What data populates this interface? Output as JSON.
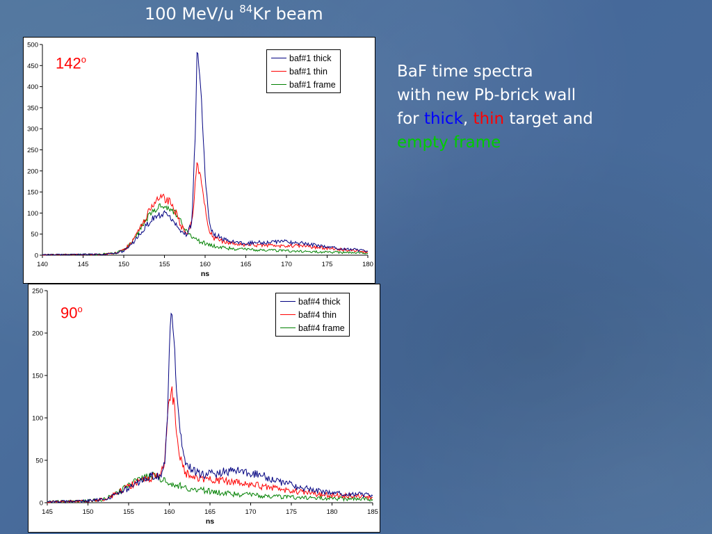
{
  "slide": {
    "title_prefix": "100 MeV/u ",
    "title_sup": "84",
    "title_suffix": "Kr beam",
    "text_line1": "BaF time spectra",
    "text_line2": "with new Pb-brick wall",
    "text_for": "for ",
    "text_thick": "thick",
    "text_comma": ", ",
    "text_thin": "thin",
    "text_target": " target and",
    "text_empty_frame": "empty frame"
  },
  "colors": {
    "thick": "#000080",
    "thin": "#ff0000",
    "frame": "#008000"
  },
  "chart_data": [
    {
      "type": "line",
      "angle_label": "142",
      "angle_sup": "o",
      "xlabel": "ns",
      "ylabel": "",
      "xlim": [
        140,
        180
      ],
      "ylim": [
        0,
        500
      ],
      "xticks": [
        140,
        145,
        150,
        155,
        160,
        165,
        170,
        175,
        180
      ],
      "yticks": [
        0,
        50,
        100,
        150,
        200,
        250,
        300,
        350,
        400,
        450,
        500
      ],
      "legend_position": "top-right",
      "series": [
        {
          "name": "baf#1 thick",
          "color": "#000080",
          "points": [
            [
              140,
              1
            ],
            [
              147,
              2
            ],
            [
              149,
              4
            ],
            [
              150,
              10
            ],
            [
              151,
              25
            ],
            [
              152,
              50
            ],
            [
              153,
              75
            ],
            [
              154,
              95
            ],
            [
              155,
              98
            ],
            [
              156,
              85
            ],
            [
              157,
              55
            ],
            [
              157.8,
              48
            ],
            [
              158.4,
              80
            ],
            [
              158.8,
              300
            ],
            [
              159.0,
              470
            ],
            [
              159.3,
              455
            ],
            [
              159.6,
              350
            ],
            [
              160,
              180
            ],
            [
              160.5,
              80
            ],
            [
              161,
              50
            ],
            [
              163,
              32
            ],
            [
              165,
              28
            ],
            [
              167,
              30
            ],
            [
              169,
              33
            ],
            [
              171,
              30
            ],
            [
              173,
              25
            ],
            [
              175,
              20
            ],
            [
              177,
              15
            ],
            [
              180,
              10
            ]
          ]
        },
        {
          "name": "baf#1 thin",
          "color": "#ff0000",
          "points": [
            [
              140,
              1
            ],
            [
              147,
              2
            ],
            [
              149,
              5
            ],
            [
              150,
              12
            ],
            [
              151,
              30
            ],
            [
              152,
              65
            ],
            [
              153,
              100
            ],
            [
              154,
              130
            ],
            [
              154.6,
              138
            ],
            [
              155,
              135
            ],
            [
              156,
              120
            ],
            [
              157,
              70
            ],
            [
              157.8,
              50
            ],
            [
              158.4,
              80
            ],
            [
              159,
              215
            ],
            [
              159.3,
              200
            ],
            [
              159.7,
              150
            ],
            [
              160,
              110
            ],
            [
              160.5,
              60
            ],
            [
              161,
              40
            ],
            [
              163,
              28
            ],
            [
              165,
              25
            ],
            [
              167,
              24
            ],
            [
              169,
              22
            ],
            [
              171,
              22
            ],
            [
              173,
              20
            ],
            [
              175,
              17
            ],
            [
              177,
              13
            ],
            [
              180,
              8
            ]
          ]
        },
        {
          "name": "baf#1 frame",
          "color": "#008000",
          "points": [
            [
              140,
              1
            ],
            [
              147,
              2
            ],
            [
              149,
              5
            ],
            [
              150,
              12
            ],
            [
              151,
              28
            ],
            [
              152,
              60
            ],
            [
              153,
              92
            ],
            [
              154,
              112
            ],
            [
              155,
              118
            ],
            [
              156,
              108
            ],
            [
              157,
              82
            ],
            [
              158,
              52
            ],
            [
              159,
              35
            ],
            [
              160,
              28
            ],
            [
              161,
              22
            ],
            [
              162,
              18
            ],
            [
              164,
              14
            ],
            [
              167,
              12
            ],
            [
              170,
              10
            ],
            [
              173,
              8
            ],
            [
              176,
              7
            ],
            [
              180,
              5
            ]
          ]
        }
      ]
    },
    {
      "type": "line",
      "angle_label": "90",
      "angle_sup": "o",
      "xlabel": "ns",
      "ylabel": "",
      "xlim": [
        145,
        185
      ],
      "ylim": [
        0,
        250
      ],
      "xticks": [
        145,
        150,
        155,
        160,
        165,
        170,
        175,
        180,
        185
      ],
      "yticks": [
        0,
        50,
        100,
        150,
        200,
        250
      ],
      "legend_position": "top-right",
      "series": [
        {
          "name": "baf#4 thick",
          "color": "#000080",
          "points": [
            [
              145,
              1
            ],
            [
              150,
              2
            ],
            [
              152,
              4
            ],
            [
              153,
              8
            ],
            [
              154,
              12
            ],
            [
              155,
              17
            ],
            [
              156,
              22
            ],
            [
              157,
              28
            ],
            [
              158,
              32
            ],
            [
              158.8,
              30
            ],
            [
              159.4,
              45
            ],
            [
              159.8,
              110
            ],
            [
              160.1,
              200
            ],
            [
              160.3,
              222
            ],
            [
              160.6,
              185
            ],
            [
              161,
              120
            ],
            [
              161.5,
              70
            ],
            [
              162,
              45
            ],
            [
              163,
              37
            ],
            [
              164,
              33
            ],
            [
              166,
              35
            ],
            [
              168,
              38
            ],
            [
              170,
              35
            ],
            [
              172,
              30
            ],
            [
              174,
              24
            ],
            [
              176,
              18
            ],
            [
              178,
              14
            ],
            [
              180,
              12
            ],
            [
              182,
              10
            ],
            [
              185,
              9
            ]
          ]
        },
        {
          "name": "baf#4 thin",
          "color": "#ff0000",
          "points": [
            [
              145,
              1
            ],
            [
              150,
              2
            ],
            [
              152,
              4
            ],
            [
              153,
              9
            ],
            [
              154,
              14
            ],
            [
              155,
              19
            ],
            [
              156,
              24
            ],
            [
              157,
              28
            ],
            [
              158,
              30
            ],
            [
              158.8,
              32
            ],
            [
              159.4,
              45
            ],
            [
              159.8,
              100
            ],
            [
              160.2,
              138
            ],
            [
              160.5,
              120
            ],
            [
              161,
              75
            ],
            [
              161.5,
              45
            ],
            [
              162,
              35
            ],
            [
              163,
              30
            ],
            [
              165,
              27
            ],
            [
              167,
              25
            ],
            [
              169,
              23
            ],
            [
              171,
              20
            ],
            [
              173,
              17
            ],
            [
              175,
              14
            ],
            [
              177,
              11
            ],
            [
              180,
              9
            ],
            [
              185,
              7
            ]
          ]
        },
        {
          "name": "baf#4 frame",
          "color": "#008000",
          "points": [
            [
              145,
              1
            ],
            [
              150,
              2
            ],
            [
              152,
              4
            ],
            [
              153,
              8
            ],
            [
              154,
              14
            ],
            [
              155,
              20
            ],
            [
              156,
              25
            ],
            [
              157,
              29
            ],
            [
              158,
              32
            ],
            [
              158.8,
              30
            ],
            [
              159.5,
              25
            ],
            [
              160.5,
              22
            ],
            [
              162,
              18
            ],
            [
              164,
              15
            ],
            [
              166,
              12
            ],
            [
              168,
              10
            ],
            [
              170,
              9
            ],
            [
              173,
              7
            ],
            [
              176,
              6
            ],
            [
              180,
              5
            ],
            [
              185,
              4
            ]
          ]
        }
      ]
    }
  ]
}
